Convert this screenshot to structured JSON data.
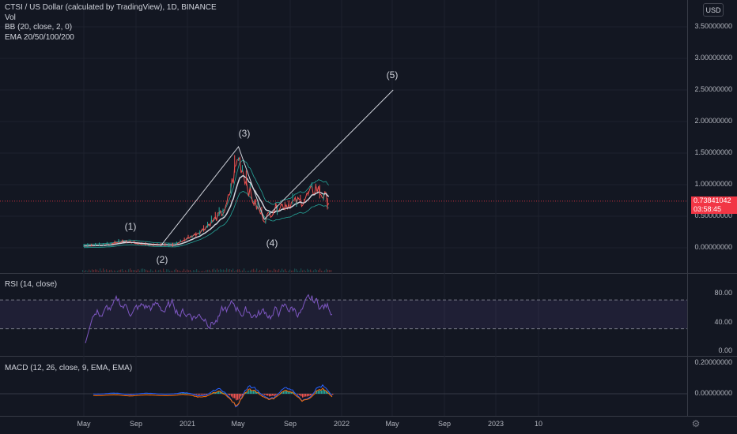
{
  "main_legend": {
    "symbol": "CTSI / US Dollar (calculated by TradingView), 1D, BINANCE",
    "vol": "Vol",
    "bb": "BB (20, close, 2, 0)",
    "ema": "EMA 20/50/100/200"
  },
  "currency_button": "USD",
  "price_axis": [
    "3.50000000",
    "3.00000000",
    "2.50000000",
    "2.00000000",
    "1.50000000",
    "1.00000000",
    "0.50000000",
    "0.00000000"
  ],
  "price_badge": {
    "price": "0.73841042",
    "countdown": "03:58:45"
  },
  "wave_labels": [
    "(1)",
    "(2)",
    "(3)",
    "(4)",
    "(5)"
  ],
  "rsi": {
    "legend": "RSI (14, close)",
    "axis": [
      "80.00",
      "40.00",
      "0.00"
    ]
  },
  "macd": {
    "legend": "MACD (12, 26, close, 9, EMA, EMA)",
    "axis": [
      "0.20000000",
      "0.00000000"
    ]
  },
  "time_axis": [
    "May",
    "Sep",
    "2021",
    "May",
    "Sep",
    "2022",
    "May",
    "Sep",
    "2023",
    "10"
  ],
  "colors": {
    "background": "#131722",
    "price_line": "#f23645",
    "rsi_band": "#7e57c2",
    "projection_line": "#d1d4dc"
  },
  "chart_data": {
    "type": "line",
    "title": "CTSI / US Dollar (calculated by TradingView), 1D, BINANCE",
    "x": [
      "2020-05",
      "2020-07",
      "2020-08",
      "2020-10",
      "2020-12",
      "2021-02",
      "2021-04",
      "2021-05",
      "2021-06",
      "2021-07",
      "2021-08",
      "2021-09",
      "2021-10",
      "2021-11",
      "2021-12"
    ],
    "series": [
      {
        "name": "CTSI",
        "values": [
          0.03,
          0.05,
          0.1,
          0.05,
          0.04,
          0.25,
          0.6,
          1.45,
          0.8,
          0.45,
          0.65,
          0.7,
          0.75,
          0.95,
          0.74
        ]
      }
    ],
    "wave_points": [
      {
        "label": "(1)",
        "x": "2020-08",
        "y": 0.1
      },
      {
        "label": "(2)",
        "x": "2020-11",
        "y": 0.04
      },
      {
        "label": "(3)",
        "x": "2021-05",
        "y": 1.6
      },
      {
        "label": "(4)",
        "x": "2021-07",
        "y": 0.45
      },
      {
        "label": "(5)",
        "x": "2022-05",
        "y": 2.5
      }
    ],
    "ylim": [
      -0.4,
      3.9
    ],
    "last_price": 0.73841042
  }
}
